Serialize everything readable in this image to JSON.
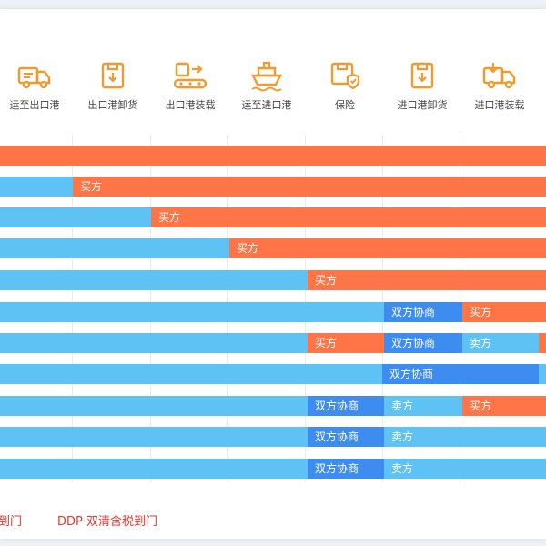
{
  "columns": [
    {
      "label": "运至出口港",
      "icon": "truck-icon"
    },
    {
      "label": "出口港卸货",
      "icon": "unload-box-icon"
    },
    {
      "label": "出口港装载",
      "icon": "conveyor-load-icon"
    },
    {
      "label": "运至进口港",
      "icon": "ship-icon"
    },
    {
      "label": "保险",
      "icon": "insurance-box-icon"
    },
    {
      "label": "进口港卸货",
      "icon": "unload-box-icon"
    },
    {
      "label": "进口港装载",
      "icon": "truck-load-icon"
    }
  ],
  "legend_labels": {
    "buyer": "买方",
    "seller": "卖方",
    "both": "双方协商"
  },
  "colors": {
    "seller": "#5ec2f5",
    "buyer": "#ff7547",
    "both": "#3d8df0",
    "accent": "#f39a2e",
    "footer": "#e8362d"
  },
  "rows": [
    {
      "segments": [
        {
          "party": "buyer",
          "label": ""
        }
      ]
    },
    {
      "segments": [
        {
          "party": "seller",
          "label": ""
        },
        {
          "party": "buyer",
          "label": "买方"
        }
      ]
    },
    {
      "segments": [
        {
          "party": "seller",
          "label": ""
        },
        {
          "party": "buyer",
          "label": "买方"
        }
      ]
    },
    {
      "segments": [
        {
          "party": "seller",
          "label": ""
        },
        {
          "party": "buyer",
          "label": "买方"
        }
      ]
    },
    {
      "segments": [
        {
          "party": "seller",
          "label": ""
        },
        {
          "party": "buyer",
          "label": "买方"
        }
      ]
    },
    {
      "segments": [
        {
          "party": "seller",
          "label": ""
        },
        {
          "party": "both",
          "label": "双方协商"
        },
        {
          "party": "buyer",
          "label": "买方"
        }
      ]
    },
    {
      "segments": [
        {
          "party": "seller",
          "label": ""
        },
        {
          "party": "buyer",
          "label": "买方"
        },
        {
          "party": "both",
          "label": "双方协商"
        },
        {
          "party": "seller",
          "label": "卖方"
        },
        {
          "party": "buyer",
          "label": ""
        }
      ]
    },
    {
      "segments": [
        {
          "party": "seller",
          "label": ""
        },
        {
          "party": "both",
          "label": "双方协商"
        },
        {
          "party": "seller",
          "label": ""
        }
      ]
    },
    {
      "segments": [
        {
          "party": "seller",
          "label": ""
        },
        {
          "party": "both",
          "label": "双方协商"
        },
        {
          "party": "seller",
          "label": "卖方"
        },
        {
          "party": "buyer",
          "label": "买方"
        }
      ]
    },
    {
      "segments": [
        {
          "party": "seller",
          "label": ""
        },
        {
          "party": "both",
          "label": "双方协商"
        },
        {
          "party": "seller",
          "label": "卖方"
        }
      ]
    },
    {
      "segments": [
        {
          "party": "seller",
          "label": ""
        },
        {
          "party": "both",
          "label": "双方协商"
        },
        {
          "party": "seller",
          "label": "卖方"
        }
      ]
    }
  ],
  "footer": {
    "left_fragment": "到门",
    "ddp": "DDP 双清含税到门"
  }
}
